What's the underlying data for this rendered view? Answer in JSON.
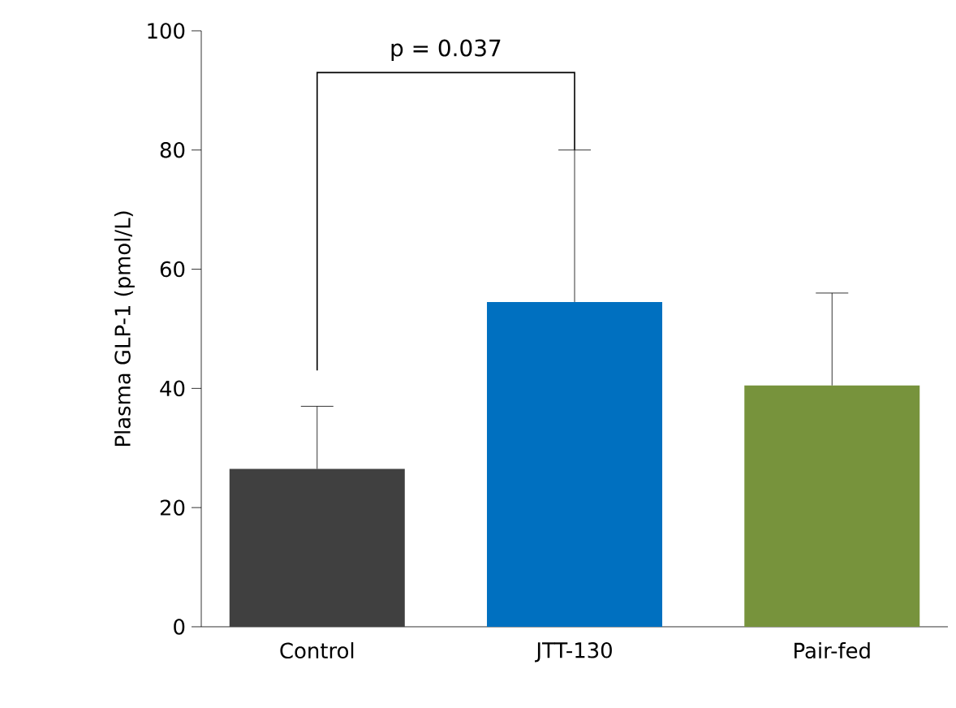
{
  "chart_data": {
    "type": "bar",
    "ylabel": "Plasma GLP-1 (pmol/L)",
    "categories": [
      "Control",
      "JTT-130",
      "Pair-fed"
    ],
    "values": [
      26.5,
      54.5,
      40.5
    ],
    "colors": [
      "#404040",
      "#0070c0",
      "#77933c"
    ],
    "errors": [
      [
        26.5,
        37
      ],
      [
        54.5,
        80
      ],
      [
        40.5,
        56
      ]
    ],
    "ylim": [
      0,
      100
    ],
    "yticks": [
      0,
      20,
      40,
      60,
      80,
      100
    ],
    "annotations": [
      "p = 0.037"
    ]
  }
}
